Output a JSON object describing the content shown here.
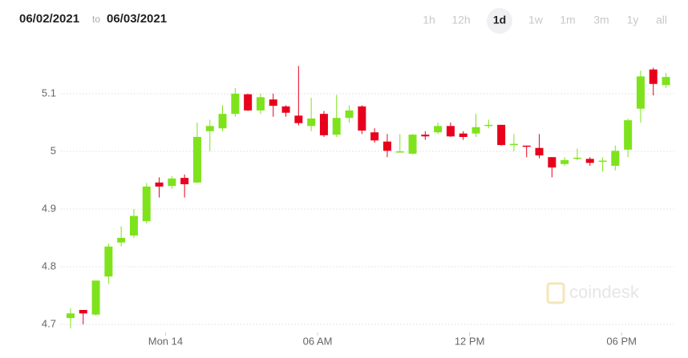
{
  "chart_data": {
    "type": "candlestick",
    "date_from": "06/02/2021",
    "date_separator": "to",
    "date_to": "06/03/2021",
    "timeframes": [
      "1h",
      "12h",
      "1d",
      "1w",
      "1m",
      "3m",
      "1y",
      "all"
    ],
    "selected_timeframe": 2,
    "watermark": "coindesk",
    "up_color": "#7ee31c",
    "down_color": "#e8001c",
    "grid": true,
    "ylim": [
      4.686,
      5.18
    ],
    "yticks": [
      4.7,
      4.8,
      4.9,
      5,
      5.1
    ],
    "xlim": [
      -0.82,
      47.6
    ],
    "xticks": [
      {
        "value": 7.5,
        "label": "Mon 14"
      },
      {
        "value": 19.5,
        "label": "06 AM"
      },
      {
        "value": 31.5,
        "label": "12 PM"
      },
      {
        "value": 43.5,
        "label": "06 PM"
      }
    ],
    "open": [
      4.711,
      4.725,
      4.717,
      4.783,
      4.842,
      4.854,
      4.879,
      4.946,
      4.94,
      4.954,
      4.946,
      5.035,
      5.04,
      5.065,
      5.099,
      5.071,
      5.09,
      5.078,
      5.062,
      5.044,
      5.065,
      5.029,
      5.058,
      5.078,
      5.033,
      5.017,
      5.0,
      4.996,
      5.029,
      5.033,
      5.044,
      5.031,
      5.031,
      5.045,
      5.046,
      5.012,
      5.01,
      5.006,
      4.99,
      4.978,
      4.988,
      4.987,
      4.983,
      4.975,
      5.003,
      5.074,
      5.142,
      5.115
    ],
    "high": [
      4.728,
      4.725,
      4.776,
      4.84,
      4.87,
      4.9,
      4.945,
      4.955,
      4.957,
      4.96,
      5.05,
      5.055,
      5.08,
      5.11,
      5.1,
      5.1,
      5.1,
      5.08,
      5.148,
      5.093,
      5.07,
      5.098,
      5.08,
      5.08,
      5.04,
      5.03,
      5.03,
      5.03,
      5.035,
      5.05,
      5.05,
      5.035,
      5.065,
      5.055,
      5.046,
      5.03,
      5.01,
      5.03,
      4.99,
      4.99,
      5.005,
      4.99,
      4.99,
      5.01,
      5.057,
      5.14,
      5.145,
      5.136
    ],
    "low": [
      4.693,
      4.7,
      4.715,
      4.77,
      4.835,
      4.85,
      4.875,
      4.92,
      4.935,
      4.92,
      4.945,
      5.0,
      5.035,
      5.06,
      5.07,
      5.065,
      5.06,
      5.06,
      5.045,
      5.035,
      5.025,
      5.025,
      5.05,
      5.03,
      5.015,
      4.99,
      4.998,
      4.995,
      5.02,
      5.03,
      5.025,
      5.02,
      5.025,
      5.04,
      5.01,
      5.0,
      4.99,
      4.988,
      4.955,
      4.975,
      4.985,
      4.975,
      4.965,
      4.967,
      4.99,
      5.05,
      5.097,
      5.11
    ],
    "close": [
      4.719,
      4.719,
      4.776,
      4.835,
      4.85,
      4.888,
      4.939,
      4.939,
      4.953,
      4.943,
      5.025,
      5.044,
      5.065,
      5.1,
      5.071,
      5.094,
      5.079,
      5.067,
      5.049,
      5.057,
      5.028,
      5.058,
      5.071,
      5.036,
      5.019,
      5.001,
      5.0,
      5.029,
      5.026,
      5.044,
      5.026,
      5.025,
      5.042,
      5.046,
      5.011,
      5.013,
      5.009,
      4.993,
      4.972,
      4.985,
      4.989,
      4.98,
      4.984,
      5.001,
      5.054,
      5.13,
      5.117,
      5.129
    ]
  }
}
